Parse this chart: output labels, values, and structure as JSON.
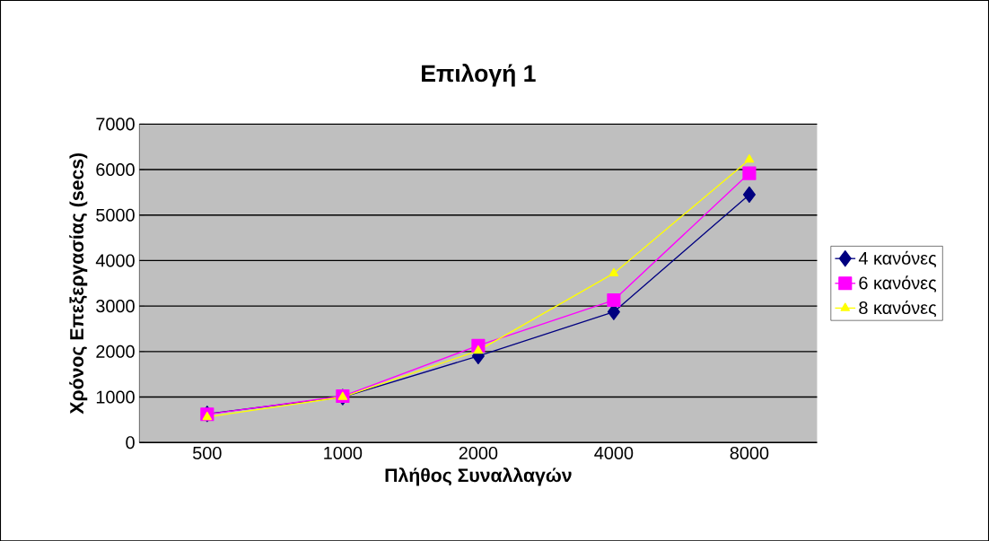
{
  "chart_data": {
    "type": "line",
    "title": "Επιλογή 1",
    "xlabel": "Πλήθος Συναλλαγών",
    "ylabel": "Χρόνος Επεξεργασίας (secs)",
    "categories": [
      "500",
      "1000",
      "2000",
      "4000",
      "8000"
    ],
    "series": [
      {
        "name": "4 κανόνες",
        "color": "#000080",
        "marker": "diamond",
        "values": [
          630,
          1000,
          1900,
          2870,
          5450
        ]
      },
      {
        "name": "6 κανόνες",
        "color": "#ff00ff",
        "marker": "square",
        "values": [
          620,
          1020,
          2130,
          3130,
          5920
        ]
      },
      {
        "name": "8 κανόνες",
        "color": "#ffff00",
        "marker": "triangle",
        "values": [
          560,
          1000,
          2020,
          3720,
          6220
        ]
      }
    ],
    "ylim": [
      0,
      7000
    ],
    "yticks": [
      0,
      1000,
      2000,
      3000,
      4000,
      5000,
      6000,
      7000
    ],
    "grid": "y",
    "legend": "right"
  }
}
